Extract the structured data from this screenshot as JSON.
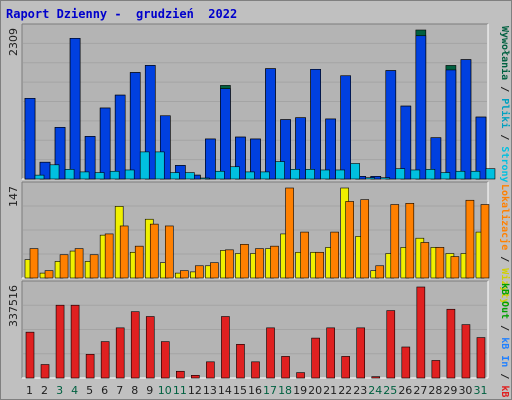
{
  "title": "Raport Dzienny -  grudzień  2022",
  "colors": {
    "background": "#c0c0c0",
    "plot": "#b4b4b4",
    "grid": "#a4a4a4",
    "visits": "#006040",
    "pages": "#0040e0",
    "files": "#00c0e0",
    "hits": "#00d0d0",
    "sites": "#f0f000",
    "locations": "#ff8000",
    "kb_in": "#2080ff",
    "kb_out": "#00a000",
    "kb_f": "#e02020",
    "weekday_label": "#202020",
    "weekend_label": "#006040"
  },
  "side_labels": {
    "panel1": [
      {
        "text": "Wywołania",
        "color": "#006040"
      },
      {
        "text": " / ",
        "color": "#202020"
      },
      {
        "text": "Pliki",
        "color": "#00a0c0"
      },
      {
        "text": " / ",
        "color": "#202020"
      },
      {
        "text": "Strony",
        "color": "#00c0e0"
      }
    ],
    "panel2": [
      {
        "text": "Lokalizacje",
        "color": "#ff8000"
      },
      {
        "text": " / ",
        "color": "#202020"
      },
      {
        "text": "Wizyty",
        "color": "#d0d000"
      }
    ],
    "panel3": [
      {
        "text": "kB Out",
        "color": "#00a000"
      },
      {
        "text": " / ",
        "color": "#202020"
      },
      {
        "text": "kB In",
        "color": "#2080ff"
      },
      {
        "text": " / ",
        "color": "#202020"
      },
      {
        "text": "kB F",
        "color": "#e02020"
      }
    ]
  },
  "chart_data": {
    "type": "bar",
    "categories": [
      "1",
      "2",
      "3",
      "4",
      "5",
      "6",
      "7",
      "8",
      "9",
      "10",
      "11",
      "12",
      "13",
      "14",
      "15",
      "16",
      "17",
      "18",
      "19",
      "20",
      "21",
      "22",
      "23",
      "24",
      "25",
      "26",
      "27",
      "28",
      "29",
      "30",
      "31"
    ],
    "weekend_days": [
      "3",
      "4",
      "10",
      "11",
      "17",
      "18",
      "24",
      "25",
      "31"
    ],
    "panels": [
      {
        "id": "hits-panel",
        "ymax_label": "2309",
        "ylim": [
          0,
          2309
        ],
        "series": [
          {
            "key": "visits",
            "values": [
              1250,
              260,
              800,
              2180,
              660,
              1100,
              1300,
              1650,
              1760,
              980,
              210,
              60,
              620,
              1450,
              650,
              620,
              1710,
              920,
              950,
              1700,
              930,
              1600,
              40,
              40,
              1680,
              1130,
              2309,
              640,
              1760,
              1850,
              960
            ]
          },
          {
            "key": "pages",
            "values": [
              1250,
              260,
              800,
              2180,
              660,
              1100,
              1300,
              1650,
              1760,
              980,
              210,
              60,
              620,
              1400,
              650,
              620,
              1710,
              920,
              950,
              1700,
              930,
              1600,
              40,
              40,
              1680,
              1130,
              2220,
              640,
              1690,
              1850,
              960
            ]
          },
          {
            "key": "files",
            "values": [
              60,
              220,
              150,
              110,
              100,
              120,
              140,
              420,
              420,
              100,
              100,
              10,
              120,
              190,
              110,
              110,
              270,
              150,
              150,
              140,
              140,
              240,
              20,
              20,
              160,
              140,
              150,
              100,
              120,
              120,
              160
            ]
          }
        ]
      },
      {
        "id": "visits-panel",
        "ymax_label": "147",
        "ylim": [
          0,
          147
        ],
        "series": [
          {
            "key": "sites",
            "values": [
              30,
              8,
              27,
              44,
              27,
              70,
              117,
              42,
              96,
              25,
              8,
              10,
              20,
              45,
              40,
              40,
              48,
              72,
              42,
              42,
              50,
              147,
              68,
              12,
              40,
              50,
              65,
              50,
              40,
              40,
              75
            ]
          },
          {
            "key": "locations",
            "values": [
              48,
              12,
              38,
              48,
              38,
              72,
              85,
              52,
              88,
              85,
              12,
              20,
              25,
              46,
              55,
              48,
              52,
              147,
              75,
              42,
              75,
              125,
              128,
              20,
              120,
              122,
              58,
              50,
              35,
              127,
              120
            ]
          }
        ]
      },
      {
        "id": "kb-panel",
        "ymax_label": "337516",
        "ylim": [
          0,
          337516
        ],
        "series": [
          {
            "key": "kb_f",
            "values": [
              170000,
              50000,
              270000,
              270000,
              88000,
              135000,
              186000,
              246000,
              228000,
              135000,
              25000,
              10000,
              60000,
              228000,
              125000,
              60000,
              186000,
              80000,
              20000,
              148000,
              186000,
              80000,
              186000,
              5000,
              250000,
              115000,
              337516,
              65000,
              255000,
              198000,
              150000
            ]
          }
        ]
      }
    ]
  }
}
